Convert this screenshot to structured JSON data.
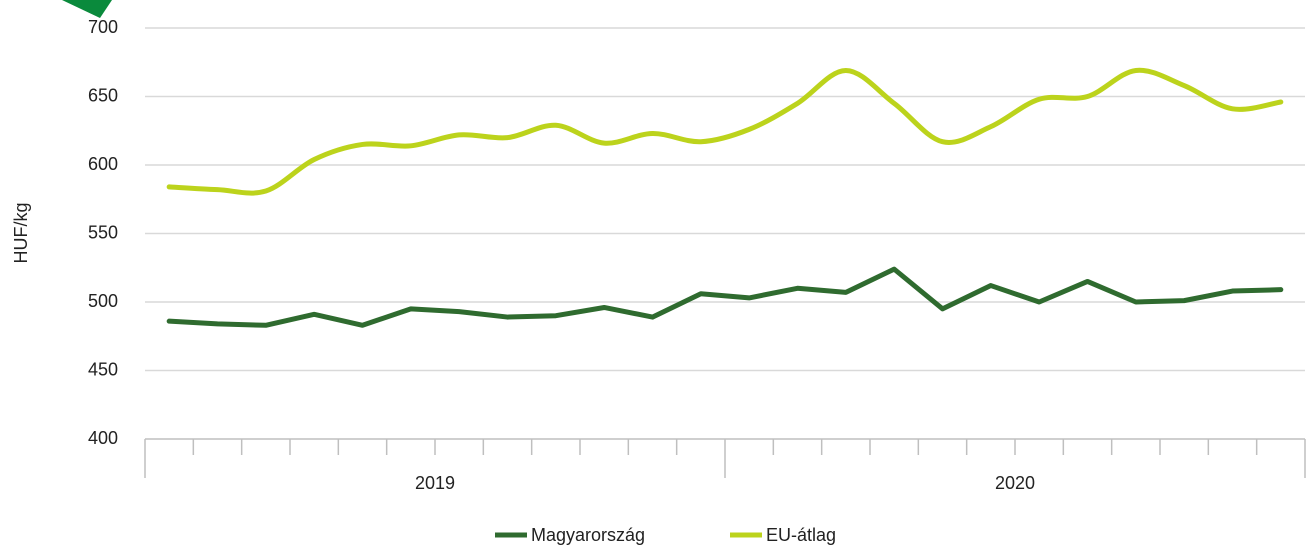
{
  "chart_data": {
    "type": "line",
    "smooth_series": [
      "EU-átlag"
    ],
    "y_label": "HUF/kg",
    "categories": [
      null,
      null,
      null,
      null,
      null,
      null,
      null,
      null,
      null,
      null,
      null,
      null,
      null,
      null,
      null,
      null,
      null,
      null,
      null,
      null,
      null,
      null,
      null,
      null
    ],
    "years": [
      "2019",
      "2020"
    ],
    "series": [
      {
        "name": "Magyarország",
        "color": "#2f6b2f",
        "values": [
          486,
          484,
          483,
          491,
          483,
          495,
          493,
          489,
          490,
          496,
          489,
          506,
          503,
          510,
          507,
          524,
          495,
          512,
          500,
          515,
          500,
          501,
          508,
          509
        ]
      },
      {
        "name": "EU-átlag",
        "color": "#bcd31c",
        "values": [
          584,
          582,
          581,
          604,
          615,
          614,
          622,
          620,
          629,
          616,
          623,
          617,
          626,
          645,
          669,
          645,
          617,
          628,
          648,
          650,
          669,
          658,
          641,
          646
        ]
      }
    ],
    "ylim": [
      400,
      700
    ],
    "yticks": [
      400,
      450,
      500,
      550,
      600,
      650,
      700
    ],
    "grid": true,
    "legend": "bottom"
  }
}
